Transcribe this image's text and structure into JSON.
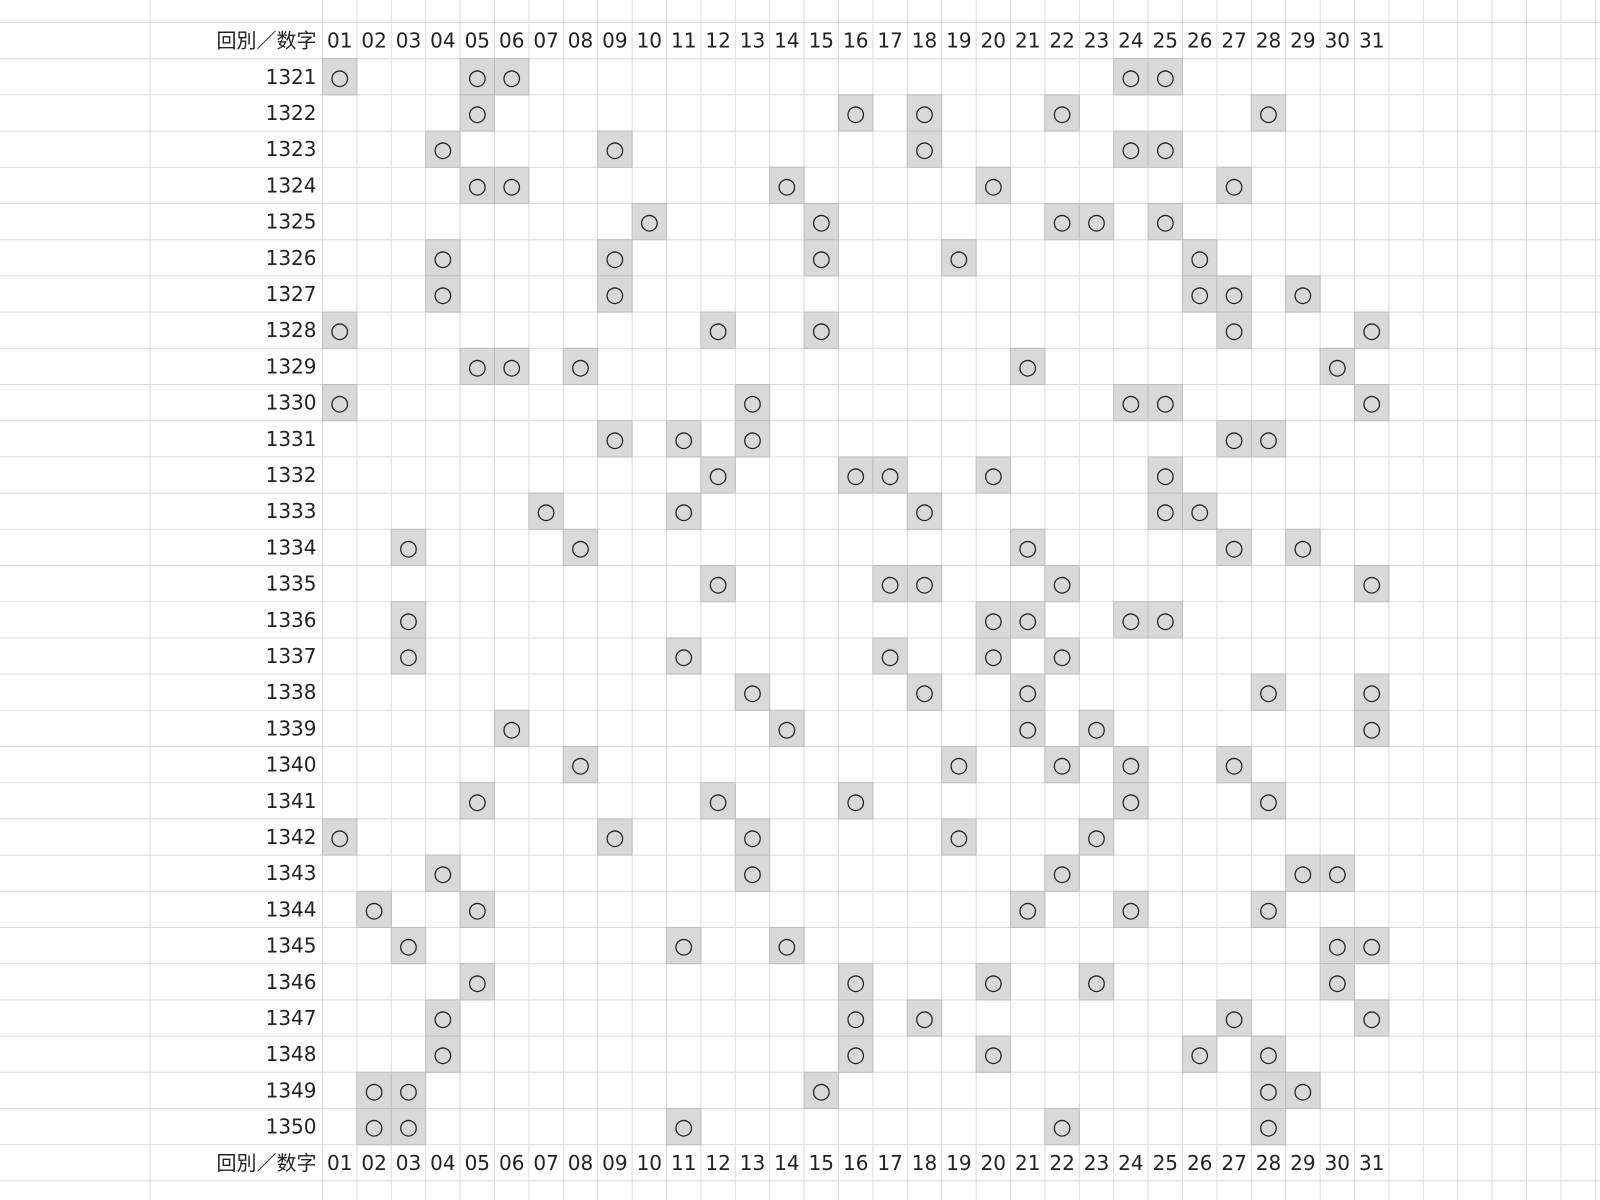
{
  "header": {
    "label": "回別／数字",
    "numbers": [
      "01",
      "02",
      "03",
      "04",
      "05",
      "06",
      "07",
      "08",
      "09",
      "10",
      "11",
      "12",
      "13",
      "14",
      "15",
      "16",
      "17",
      "18",
      "19",
      "20",
      "21",
      "22",
      "23",
      "24",
      "25",
      "26",
      "27",
      "28",
      "29",
      "30",
      "31"
    ]
  },
  "mark_symbol": "○",
  "rows": [
    {
      "round": "1321",
      "hits": [
        1,
        5,
        6,
        24,
        25
      ]
    },
    {
      "round": "1322",
      "hits": [
        5,
        16,
        18,
        22,
        28
      ]
    },
    {
      "round": "1323",
      "hits": [
        4,
        9,
        18,
        24,
        25
      ]
    },
    {
      "round": "1324",
      "hits": [
        5,
        6,
        14,
        20,
        27
      ]
    },
    {
      "round": "1325",
      "hits": [
        10,
        15,
        22,
        23,
        25
      ]
    },
    {
      "round": "1326",
      "hits": [
        4,
        9,
        15,
        19,
        26
      ]
    },
    {
      "round": "1327",
      "hits": [
        4,
        9,
        26,
        27,
        29
      ]
    },
    {
      "round": "1328",
      "hits": [
        1,
        12,
        15,
        27,
        31
      ]
    },
    {
      "round": "1329",
      "hits": [
        5,
        6,
        8,
        21,
        30
      ]
    },
    {
      "round": "1330",
      "hits": [
        1,
        13,
        24,
        25,
        31
      ]
    },
    {
      "round": "1331",
      "hits": [
        9,
        11,
        13,
        27,
        28
      ]
    },
    {
      "round": "1332",
      "hits": [
        12,
        16,
        17,
        20,
        25
      ]
    },
    {
      "round": "1333",
      "hits": [
        7,
        11,
        18,
        25,
        26
      ]
    },
    {
      "round": "1334",
      "hits": [
        3,
        8,
        21,
        27,
        29
      ]
    },
    {
      "round": "1335",
      "hits": [
        12,
        17,
        18,
        22,
        31
      ]
    },
    {
      "round": "1336",
      "hits": [
        3,
        20,
        21,
        24,
        25
      ]
    },
    {
      "round": "1337",
      "hits": [
        3,
        11,
        17,
        20,
        22
      ]
    },
    {
      "round": "1338",
      "hits": [
        13,
        18,
        21,
        28,
        31
      ]
    },
    {
      "round": "1339",
      "hits": [
        6,
        14,
        21,
        23,
        31
      ]
    },
    {
      "round": "1340",
      "hits": [
        8,
        19,
        22,
        24,
        27
      ]
    },
    {
      "round": "1341",
      "hits": [
        5,
        12,
        16,
        24,
        28
      ]
    },
    {
      "round": "1342",
      "hits": [
        1,
        9,
        13,
        19,
        23
      ]
    },
    {
      "round": "1343",
      "hits": [
        4,
        13,
        22,
        29,
        30
      ]
    },
    {
      "round": "1344",
      "hits": [
        2,
        5,
        21,
        24,
        28
      ]
    },
    {
      "round": "1345",
      "hits": [
        3,
        11,
        14,
        30,
        31
      ]
    },
    {
      "round": "1346",
      "hits": [
        5,
        16,
        20,
        23,
        30
      ]
    },
    {
      "round": "1347",
      "hits": [
        4,
        16,
        18,
        27,
        31
      ]
    },
    {
      "round": "1348",
      "hits": [
        4,
        16,
        20,
        26,
        28
      ]
    },
    {
      "round": "1349",
      "hits": [
        2,
        3,
        15,
        28,
        29
      ]
    },
    {
      "round": "1350",
      "hits": [
        2,
        3,
        11,
        22,
        28
      ]
    }
  ],
  "footer": {
    "label": "回別／数字",
    "numbers": [
      "01",
      "02",
      "03",
      "04",
      "05",
      "06",
      "07",
      "08",
      "09",
      "10",
      "11",
      "12",
      "13",
      "14",
      "15",
      "16",
      "17",
      "18",
      "19",
      "20",
      "21",
      "22",
      "23",
      "24",
      "25",
      "26",
      "27",
      "28",
      "29",
      "30",
      "31"
    ]
  }
}
